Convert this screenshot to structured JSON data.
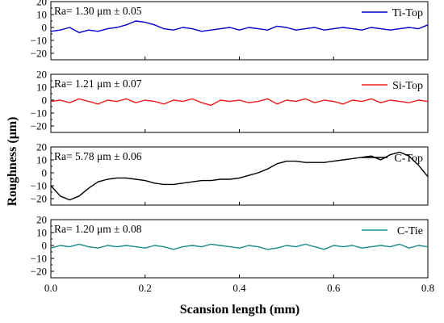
{
  "chart_data": {
    "type": "line",
    "xlabel": "Scansion length (mm)",
    "ylabel": "Roughness (μm)",
    "xlim": [
      0,
      0.8
    ],
    "x_ticks": [
      "0.0",
      "0.2",
      "0.4",
      "0.6",
      "0.8"
    ],
    "y_ticks": [
      "20",
      "10",
      "0",
      "−10",
      "−20"
    ],
    "ylim": [
      -25,
      20
    ],
    "grid": false,
    "legend_position": "top-right",
    "panels": [
      {
        "name": "Ti-Top",
        "annotation": "Ra= 1.30 μm ± 0.05",
        "color": "#0000cc",
        "x": [
          0.0,
          0.02,
          0.04,
          0.06,
          0.08,
          0.1,
          0.12,
          0.14,
          0.16,
          0.18,
          0.2,
          0.22,
          0.24,
          0.26,
          0.28,
          0.3,
          0.32,
          0.34,
          0.36,
          0.38,
          0.4,
          0.42,
          0.44,
          0.46,
          0.48,
          0.5,
          0.52,
          0.54,
          0.56,
          0.58,
          0.6,
          0.62,
          0.64,
          0.66,
          0.68,
          0.7,
          0.72,
          0.74,
          0.76,
          0.78,
          0.8
        ],
        "y": [
          -3,
          -2,
          0,
          -4,
          -2,
          -3,
          -1,
          0,
          2,
          5,
          4,
          2,
          -1,
          -2,
          0,
          -1,
          -3,
          -2,
          -1,
          0,
          -2,
          0,
          -1,
          -2,
          1,
          0,
          -2,
          -1,
          0,
          -2,
          -1,
          0,
          -1,
          -2,
          0,
          -1,
          -2,
          -1,
          0,
          -1,
          2
        ]
      },
      {
        "name": "Si-Top",
        "annotation": "Ra= 1.21 μm ± 0.07",
        "color": "#ee1c1c",
        "x": [
          0.0,
          0.02,
          0.04,
          0.06,
          0.08,
          0.1,
          0.12,
          0.14,
          0.16,
          0.18,
          0.2,
          0.22,
          0.24,
          0.26,
          0.28,
          0.3,
          0.32,
          0.34,
          0.36,
          0.38,
          0.4,
          0.42,
          0.44,
          0.46,
          0.48,
          0.5,
          0.52,
          0.54,
          0.56,
          0.58,
          0.6,
          0.62,
          0.64,
          0.66,
          0.68,
          0.7,
          0.72,
          0.74,
          0.76,
          0.78,
          0.8
        ],
        "y": [
          -1,
          0,
          -2,
          1,
          -1,
          -3,
          0,
          -1,
          1,
          -2,
          0,
          -1,
          -3,
          0,
          -1,
          1,
          -2,
          -4,
          0,
          -1,
          0,
          -2,
          -1,
          1,
          -3,
          0,
          -1,
          1,
          -2,
          0,
          -1,
          -3,
          0,
          -1,
          1,
          -2,
          0,
          -1,
          -2,
          0,
          -1
        ]
      },
      {
        "name": "C-Top",
        "annotation": "Ra= 5.78 μm ± 0.06",
        "color": "#000000",
        "x": [
          0.0,
          0.02,
          0.04,
          0.06,
          0.08,
          0.1,
          0.12,
          0.14,
          0.16,
          0.18,
          0.2,
          0.22,
          0.24,
          0.26,
          0.28,
          0.3,
          0.32,
          0.34,
          0.36,
          0.38,
          0.4,
          0.42,
          0.44,
          0.46,
          0.48,
          0.5,
          0.52,
          0.54,
          0.56,
          0.58,
          0.6,
          0.62,
          0.64,
          0.66,
          0.68,
          0.7,
          0.72,
          0.74,
          0.76,
          0.78,
          0.8
        ],
        "y": [
          -10,
          -18,
          -21,
          -18,
          -12,
          -7,
          -5,
          -4,
          -4,
          -5,
          -6,
          -8,
          -9,
          -9,
          -8,
          -7,
          -6,
          -6,
          -5,
          -5,
          -4,
          -2,
          0,
          3,
          7,
          9,
          9,
          8,
          8,
          8,
          9,
          10,
          11,
          12,
          13,
          10,
          14,
          16,
          13,
          6,
          -3
        ]
      },
      {
        "name": "C-Tie",
        "annotation": "Ra= 1.20 μm ± 0.08",
        "color": "#1a8a8a",
        "x": [
          0.0,
          0.02,
          0.04,
          0.06,
          0.08,
          0.1,
          0.12,
          0.14,
          0.16,
          0.18,
          0.2,
          0.22,
          0.24,
          0.26,
          0.28,
          0.3,
          0.32,
          0.34,
          0.36,
          0.38,
          0.4,
          0.42,
          0.44,
          0.46,
          0.48,
          0.5,
          0.52,
          0.54,
          0.56,
          0.58,
          0.6,
          0.62,
          0.64,
          0.66,
          0.68,
          0.7,
          0.72,
          0.74,
          0.76,
          0.78,
          0.8
        ],
        "y": [
          -2,
          0,
          -1,
          1,
          -1,
          -2,
          0,
          -1,
          0,
          -1,
          -2,
          0,
          -1,
          -3,
          -1,
          0,
          -1,
          1,
          0,
          -1,
          -2,
          0,
          -1,
          -3,
          -2,
          0,
          -1,
          1,
          -1,
          -3,
          0,
          -1,
          0,
          -2,
          -1,
          0,
          -1,
          1,
          -2,
          0,
          -1
        ]
      }
    ]
  }
}
